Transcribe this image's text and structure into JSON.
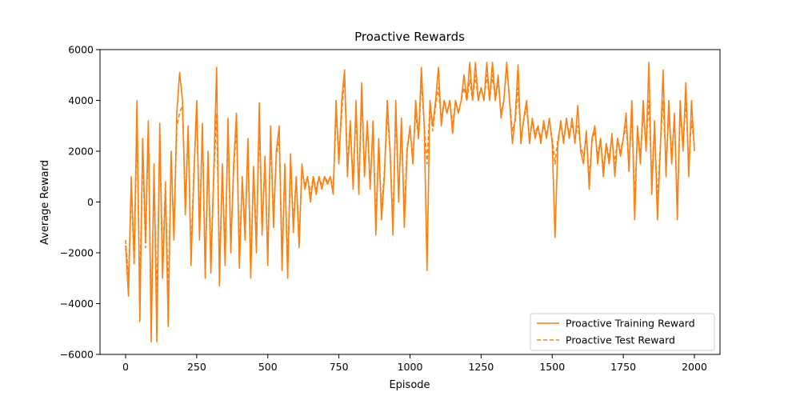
{
  "chart_data": {
    "type": "line",
    "title": "Proactive Rewards",
    "xlabel": "Episode",
    "ylabel": "Average Reward",
    "xlim": [
      -90,
      2090
    ],
    "ylim": [
      -6000,
      6000
    ],
    "xticks": [
      0,
      250,
      500,
      750,
      1000,
      1250,
      1500,
      1750,
      2000
    ],
    "yticks": [
      -6000,
      -4000,
      -2000,
      0,
      2000,
      4000,
      6000
    ],
    "grid": false,
    "legend_position": "lower-right",
    "colors": {
      "series": "#ff7f0e",
      "axes": "#000000"
    },
    "series": [
      {
        "name": "Proactive Training Reward",
        "style": "solid",
        "x": [
          0,
          10,
          20,
          30,
          40,
          50,
          60,
          70,
          80,
          90,
          100,
          110,
          120,
          130,
          140,
          150,
          160,
          170,
          180,
          190,
          200,
          210,
          220,
          230,
          240,
          250,
          260,
          270,
          280,
          290,
          300,
          310,
          320,
          330,
          340,
          350,
          360,
          370,
          380,
          390,
          400,
          410,
          420,
          430,
          440,
          450,
          460,
          470,
          480,
          490,
          500,
          510,
          520,
          530,
          540,
          550,
          560,
          570,
          580,
          590,
          600,
          610,
          620,
          630,
          640,
          650,
          660,
          670,
          680,
          690,
          700,
          710,
          720,
          730,
          740,
          750,
          760,
          770,
          780,
          790,
          800,
          810,
          820,
          830,
          840,
          850,
          860,
          870,
          880,
          890,
          900,
          910,
          920,
          930,
          940,
          950,
          960,
          970,
          980,
          990,
          1000,
          1010,
          1020,
          1030,
          1040,
          1050,
          1060,
          1070,
          1080,
          1090,
          1100,
          1110,
          1120,
          1130,
          1140,
          1150,
          1160,
          1170,
          1180,
          1190,
          1200,
          1210,
          1220,
          1230,
          1240,
          1250,
          1260,
          1270,
          1280,
          1290,
          1300,
          1310,
          1320,
          1330,
          1340,
          1350,
          1360,
          1370,
          1380,
          1390,
          1400,
          1410,
          1420,
          1430,
          1440,
          1450,
          1460,
          1470,
          1480,
          1490,
          1500,
          1510,
          1520,
          1530,
          1540,
          1550,
          1560,
          1570,
          1580,
          1590,
          1600,
          1610,
          1620,
          1630,
          1640,
          1650,
          1660,
          1670,
          1680,
          1690,
          1700,
          1710,
          1720,
          1730,
          1740,
          1750,
          1760,
          1770,
          1780,
          1790,
          1800,
          1810,
          1820,
          1830,
          1840,
          1850,
          1860,
          1870,
          1880,
          1890,
          1900,
          1910,
          1920,
          1930,
          1940,
          1950,
          1960,
          1970,
          1980,
          1990,
          2000
        ],
        "y": [
          -1700,
          -3700,
          1000,
          -2300,
          4000,
          -4700,
          2500,
          -1500,
          3200,
          -5500,
          1500,
          -5500,
          3100,
          -3000,
          500,
          -4900,
          2000,
          -1500,
          3500,
          5100,
          4000,
          -500,
          3000,
          -2500,
          1000,
          4000,
          -1500,
          3100,
          -3000,
          2000,
          -2800,
          1200,
          5300,
          -3300,
          1500,
          -2500,
          3300,
          -2000,
          1500,
          3500,
          -2600,
          1000,
          -1500,
          2500,
          -3000,
          1400,
          -2000,
          3900,
          -1300,
          1800,
          -2500,
          3000,
          -1000,
          2000,
          3000,
          -2700,
          1500,
          -3000,
          1900,
          -1200,
          1000,
          -1800,
          1500,
          500,
          1000,
          0,
          1000,
          300,
          1000,
          500,
          1000,
          700,
          1000,
          300,
          4000,
          1500,
          4000,
          5200,
          1000,
          3200,
          500,
          4000,
          300,
          4700,
          1000,
          3200,
          500,
          3200,
          -1300,
          2500,
          -700,
          1000,
          4000,
          2000,
          -1300,
          4000,
          0,
          3300,
          -1000,
          2000,
          3000,
          1500,
          4000,
          2500,
          5300,
          3000,
          -2700,
          4000,
          3000,
          4000,
          5300,
          3000,
          4000,
          3500,
          4000,
          2700,
          4000,
          3500,
          4000,
          5000,
          4000,
          5500,
          4000,
          5500,
          4000,
          4500,
          4000,
          5500,
          4000,
          5500,
          4000,
          5000,
          3300,
          4000,
          5500,
          4000,
          2300,
          3300,
          5400,
          2300,
          3300,
          4000,
          2300,
          3300,
          2500,
          3000,
          2300,
          3200,
          2500,
          3300,
          2300,
          -1400,
          2300,
          3200,
          2300,
          3300,
          2500,
          3300,
          2300,
          3800,
          2000,
          1500,
          2800,
          500,
          2500,
          3000,
          1500,
          2500,
          1000,
          2300,
          1500,
          2700,
          1000,
          2500,
          1800,
          2500,
          3500,
          1200,
          4000,
          -700,
          3000,
          1500,
          4000,
          2000,
          5500,
          300,
          3200,
          -700,
          2000,
          5200,
          1000,
          4000,
          1500,
          3500,
          -700,
          4000,
          2000,
          4700,
          1000,
          4000,
          2000
        ]
      },
      {
        "name": "Proactive Test Reward",
        "style": "dashed",
        "x": [
          0,
          10,
          20,
          30,
          40,
          50,
          60,
          70,
          80,
          90,
          100,
          110,
          120,
          130,
          140,
          150,
          160,
          170,
          180,
          190,
          200,
          210,
          220,
          230,
          240,
          250,
          260,
          270,
          280,
          290,
          300,
          310,
          320,
          330,
          340,
          350,
          360,
          370,
          380,
          390,
          400,
          410,
          420,
          430,
          440,
          450,
          460,
          470,
          480,
          490,
          500,
          510,
          520,
          530,
          540,
          550,
          560,
          570,
          580,
          590,
          600,
          610,
          620,
          630,
          640,
          650,
          660,
          670,
          680,
          690,
          700,
          710,
          720,
          730,
          740,
          750,
          760,
          770,
          780,
          790,
          800,
          810,
          820,
          830,
          840,
          850,
          860,
          870,
          880,
          890,
          900,
          910,
          920,
          930,
          940,
          950,
          960,
          970,
          980,
          990,
          1000,
          1010,
          1020,
          1030,
          1040,
          1050,
          1060,
          1070,
          1080,
          1090,
          1100,
          1110,
          1120,
          1130,
          1140,
          1150,
          1160,
          1170,
          1180,
          1190,
          1200,
          1210,
          1220,
          1230,
          1240,
          1250,
          1260,
          1270,
          1280,
          1290,
          1300,
          1310,
          1320,
          1330,
          1340,
          1350,
          1360,
          1370,
          1380,
          1390,
          1400,
          1410,
          1420,
          1430,
          1440,
          1450,
          1460,
          1470,
          1480,
          1490,
          1500,
          1510,
          1520,
          1530,
          1540,
          1550,
          1560,
          1570,
          1580,
          1590,
          1600,
          1610,
          1620,
          1630,
          1640,
          1650,
          1660,
          1670,
          1680,
          1690,
          1700,
          1710,
          1720,
          1730,
          1740,
          1750,
          1760,
          1770,
          1780,
          1790,
          1800,
          1810,
          1820,
          1830,
          1840,
          1850,
          1860,
          1870,
          1880,
          1890,
          1900,
          1910,
          1920,
          1930,
          1940,
          1950,
          1960,
          1970,
          1980,
          1990,
          2000
        ],
        "y": [
          -1500,
          -3000,
          500,
          -2500,
          3000,
          -3500,
          2000,
          -1800,
          2800,
          -4500,
          1000,
          -4000,
          2500,
          -2700,
          800,
          -3800,
          1800,
          -1200,
          3000,
          3500,
          3800,
          0,
          2800,
          -2000,
          1200,
          3500,
          -1000,
          2800,
          -2500,
          1800,
          -2200,
          1000,
          3500,
          -2500,
          1200,
          -2000,
          2800,
          -1500,
          1200,
          3000,
          -2000,
          800,
          -1000,
          2200,
          -2500,
          1200,
          -1500,
          3000,
          -1000,
          1500,
          -2000,
          2500,
          -500,
          1800,
          2500,
          -2000,
          1200,
          -2500,
          1500,
          -800,
          1000,
          -1500,
          1200,
          700,
          1000,
          300,
          1000,
          500,
          1000,
          700,
          1000,
          800,
          1000,
          500,
          3500,
          1800,
          3500,
          5000,
          1500,
          3000,
          800,
          3500,
          500,
          4000,
          1200,
          3000,
          700,
          3000,
          -800,
          2200,
          -300,
          1200,
          3500,
          2000,
          -800,
          3500,
          300,
          3000,
          -500,
          2200,
          2800,
          1800,
          3500,
          2500,
          4800,
          3000,
          1500,
          3800,
          2800,
          3800,
          4500,
          3200,
          4000,
          3500,
          4000,
          3000,
          4000,
          3500,
          4000,
          4500,
          4000,
          4800,
          4000,
          5000,
          4000,
          4500,
          4000,
          5000,
          4000,
          5000,
          4000,
          4800,
          3500,
          4000,
          5400,
          4000,
          2800,
          3200,
          4500,
          2500,
          3200,
          3800,
          2500,
          3200,
          2700,
          3000,
          2500,
          3000,
          2700,
          3200,
          2500,
          1500,
          2500,
          3000,
          2500,
          3200,
          2700,
          3000,
          2500,
          3000,
          2200,
          1800,
          2600,
          1000,
          2400,
          2800,
          1800,
          2500,
          1300,
          2300,
          1800,
          2500,
          1500,
          2500,
          2000,
          2500,
          3000,
          1500,
          3500,
          0,
          2800,
          1800,
          3500,
          2200,
          4000,
          800,
          3000,
          0,
          2200,
          4000,
          1500,
          3500,
          1800,
          3200,
          0,
          3500,
          2200,
          4000,
          1500,
          3200,
          2200
        ]
      }
    ]
  }
}
